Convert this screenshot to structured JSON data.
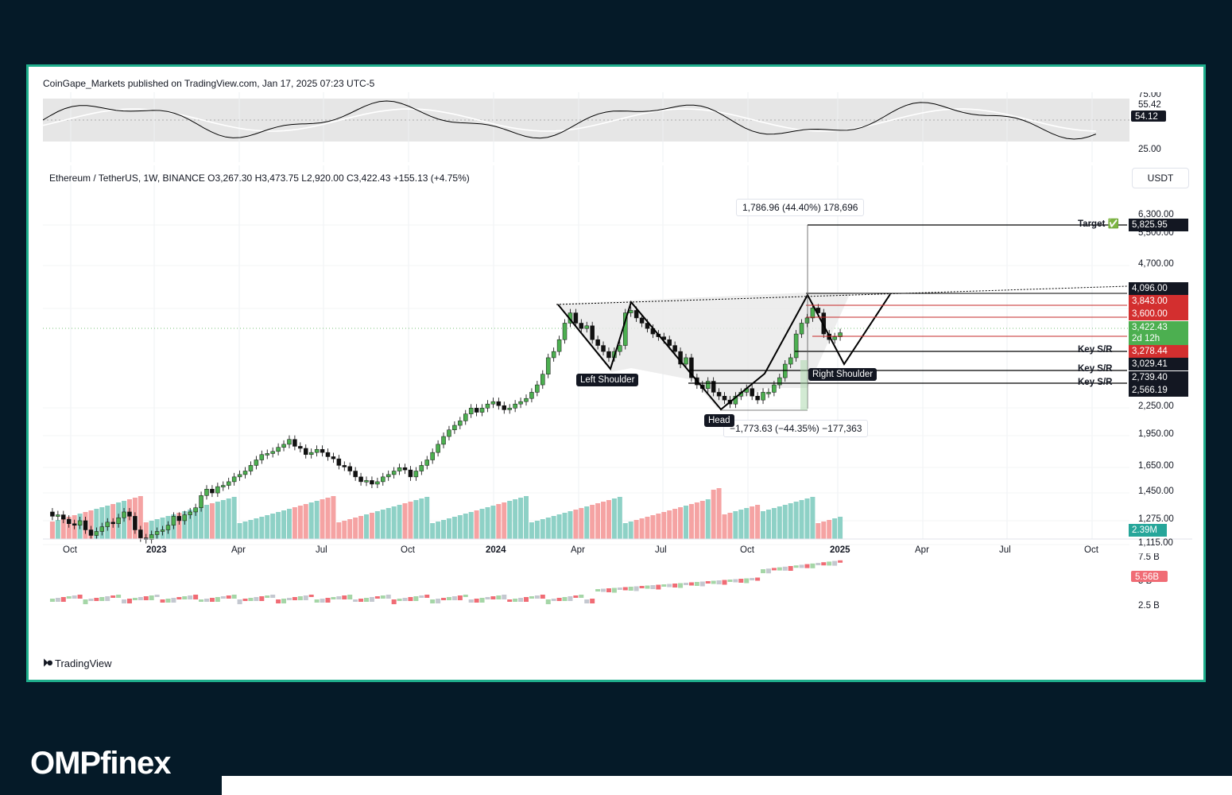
{
  "publish_line": "CoinGape_Markets published on TradingView.com, Jan 17, 2025 07:23 UTC-5",
  "legend": "Ethereum / TetherUS, 1W, BINANCE  O3,267.30  H3,473.75  L2,920.00  C3,422.43  +155.13 (+4.75%)",
  "currency_button": "USDT",
  "rsi": {
    "labels": [
      "75.00",
      "55.42",
      "25.00"
    ],
    "current": "54.12"
  },
  "price_axis": [
    "6,300.00",
    "5,500.00",
    "4,700.00",
    "2,250.00",
    "1,950.00",
    "1,650.00",
    "1,450.00",
    "1,275.00",
    "1,115.00"
  ],
  "price_tags": {
    "target": "5,825.95",
    "r1": "4,096.00",
    "r2": "3,843.00",
    "r3": "3,600.00",
    "current": "3,422.43",
    "countdown": "2d 12h",
    "s1": "3,278.44",
    "s2": "3,029.41",
    "s3": "2,739.40",
    "s4": "2,566.19",
    "volume": "2.39M"
  },
  "key_sr_label": "Key S/R",
  "target_label": "Target ✅",
  "measure_up": "1,786.96 (44.40%) 178,696",
  "measure_down": "−1,773.63 (−44.35%) −177,363",
  "pattern_labels": {
    "left_shoulder": "Left Shoulder",
    "head": "Head",
    "right_shoulder": "Right Shoulder"
  },
  "lower_axis": [
    "7.5 B",
    "5 B",
    "2.5 B"
  ],
  "lower_value": "5.56B",
  "time_axis": [
    "Oct",
    "2023",
    "Apr",
    "Jul",
    "Oct",
    "2024",
    "Apr",
    "Jul",
    "Oct",
    "2025",
    "Apr",
    "Jul",
    "Oct"
  ],
  "brand": "TradingView",
  "watermark": "OMPfinex",
  "colors": {
    "frame": "#1fae8c",
    "background": "#051a28",
    "up": "#4caf50",
    "down": "#000000",
    "resistance_tag": "#d32f2f",
    "current_tag": "#4caf50",
    "volume_tag": "#26a69a"
  }
}
